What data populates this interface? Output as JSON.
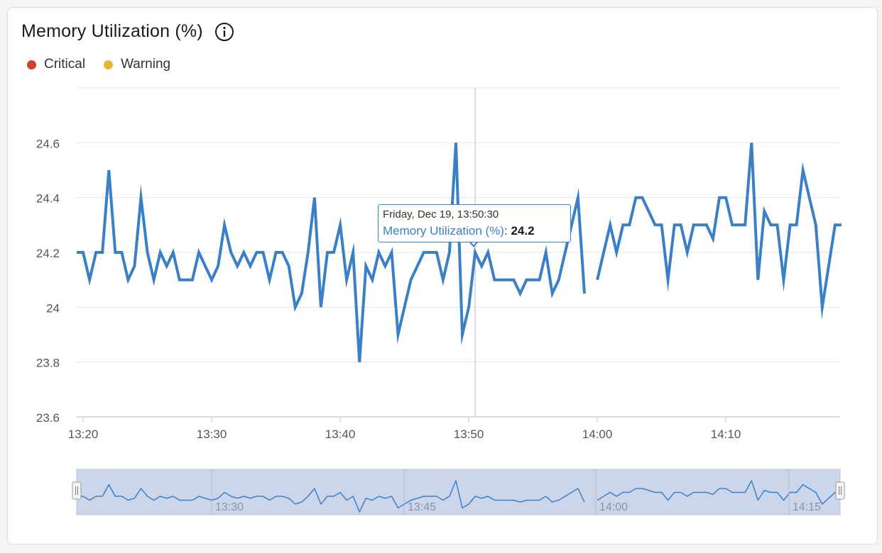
{
  "header": {
    "title": "Memory Utilization (%)",
    "info_icon": "info-circle-icon"
  },
  "legend": [
    {
      "label": "Critical",
      "color": "#d63b35"
    },
    {
      "label": "Warning",
      "color": "#e6b53a"
    }
  ],
  "tooltip": {
    "date": "Friday, Dec 19, 13:50:30",
    "series": "Memory Utilization (%)",
    "value": "24.2"
  },
  "colors": {
    "series": "#3a80c6",
    "navigator_fill": "#ccd6ea"
  },
  "chart_data": {
    "type": "line",
    "ylim": [
      23.6,
      24.8
    ],
    "y_ticks": [
      "23.6",
      "23.8",
      "24",
      "24.2",
      "24.4",
      "24.6"
    ],
    "x_ticks": [
      "13:20",
      "13:30",
      "13:40",
      "13:50",
      "14:00",
      "14:10"
    ],
    "grid": true,
    "series": [
      {
        "segments": [
          [
            [
              "13:19:30",
              24.2
            ],
            [
              "13:20:00",
              24.2
            ],
            [
              "13:20:30",
              24.1
            ],
            [
              "13:21:00",
              24.2
            ],
            [
              "13:21:30",
              24.2
            ],
            [
              "13:22:00",
              24.5
            ],
            [
              "13:22:30",
              24.2
            ],
            [
              "13:23:00",
              24.2
            ],
            [
              "13:23:30",
              24.1
            ],
            [
              "13:24:00",
              24.15
            ],
            [
              "13:24:30",
              24.4
            ],
            [
              "13:25:00",
              24.2
            ],
            [
              "13:25:30",
              24.1
            ],
            [
              "13:26:00",
              24.2
            ],
            [
              "13:26:30",
              24.15
            ],
            [
              "13:27:00",
              24.2
            ],
            [
              "13:27:30",
              24.1
            ],
            [
              "13:28:00",
              24.1
            ],
            [
              "13:28:30",
              24.1
            ],
            [
              "13:29:00",
              24.2
            ],
            [
              "13:29:30",
              24.15
            ],
            [
              "13:30:00",
              24.1
            ],
            [
              "13:30:30",
              24.15
            ],
            [
              "13:31:00",
              24.3
            ],
            [
              "13:31:30",
              24.2
            ],
            [
              "13:32:00",
              24.15
            ],
            [
              "13:32:30",
              24.2
            ],
            [
              "13:33:00",
              24.15
            ],
            [
              "13:33:30",
              24.2
            ],
            [
              "13:34:00",
              24.2
            ],
            [
              "13:34:30",
              24.1
            ],
            [
              "13:35:00",
              24.2
            ],
            [
              "13:35:30",
              24.2
            ],
            [
              "13:36:00",
              24.15
            ],
            [
              "13:36:30",
              24.0
            ],
            [
              "13:37:00",
              24.05
            ],
            [
              "13:37:30",
              24.2
            ],
            [
              "13:38:00",
              24.4
            ],
            [
              "13:38:30",
              24.0
            ],
            [
              "13:39:00",
              24.2
            ],
            [
              "13:39:30",
              24.2
            ],
            [
              "13:40:00",
              24.3
            ],
            [
              "13:40:30",
              24.1
            ],
            [
              "13:41:00",
              24.2
            ],
            [
              "13:41:30",
              23.8
            ],
            [
              "13:42:00",
              24.15
            ],
            [
              "13:42:30",
              24.1
            ],
            [
              "13:43:00",
              24.2
            ],
            [
              "13:43:30",
              24.15
            ],
            [
              "13:44:00",
              24.2
            ],
            [
              "13:44:30",
              23.9
            ],
            [
              "13:45:00",
              24.0
            ],
            [
              "13:45:30",
              24.1
            ],
            [
              "13:46:00",
              24.15
            ],
            [
              "13:46:30",
              24.2
            ],
            [
              "13:47:00",
              24.2
            ],
            [
              "13:47:30",
              24.2
            ],
            [
              "13:48:00",
              24.1
            ],
            [
              "13:48:30",
              24.2
            ],
            [
              "13:49:00",
              24.6
            ],
            [
              "13:49:30",
              23.9
            ],
            [
              "13:50:00",
              24.0
            ],
            [
              "13:50:30",
              24.2
            ],
            [
              "13:51:00",
              24.15
            ],
            [
              "13:51:30",
              24.2
            ],
            [
              "13:52:00",
              24.1
            ],
            [
              "13:52:30",
              24.1
            ],
            [
              "13:53:00",
              24.1
            ],
            [
              "13:53:30",
              24.1
            ],
            [
              "13:54:00",
              24.05
            ],
            [
              "13:54:30",
              24.1
            ],
            [
              "13:55:00",
              24.1
            ],
            [
              "13:55:30",
              24.1
            ],
            [
              "13:56:00",
              24.2
            ],
            [
              "13:56:30",
              24.05
            ],
            [
              "13:57:00",
              24.1
            ],
            [
              "13:57:30",
              24.2
            ],
            [
              "13:58:00",
              24.3
            ],
            [
              "13:58:30",
              24.4
            ],
            [
              "13:59:00",
              24.05
            ]
          ],
          [
            [
              "14:00:00",
              24.1
            ],
            [
              "14:00:30",
              24.2
            ],
            [
              "14:01:00",
              24.3
            ],
            [
              "14:01:30",
              24.2
            ],
            [
              "14:02:00",
              24.3
            ],
            [
              "14:02:30",
              24.3
            ],
            [
              "14:03:00",
              24.4
            ],
            [
              "14:03:30",
              24.4
            ],
            [
              "14:04:00",
              24.35
            ],
            [
              "14:04:30",
              24.3
            ],
            [
              "14:05:00",
              24.3
            ],
            [
              "14:05:30",
              24.1
            ],
            [
              "14:06:00",
              24.3
            ],
            [
              "14:06:30",
              24.3
            ],
            [
              "14:07:00",
              24.2
            ],
            [
              "14:07:30",
              24.3
            ],
            [
              "14:08:00",
              24.3
            ],
            [
              "14:08:30",
              24.3
            ],
            [
              "14:09:00",
              24.25
            ],
            [
              "14:09:30",
              24.4
            ],
            [
              "14:10:00",
              24.4
            ],
            [
              "14:10:30",
              24.3
            ],
            [
              "14:11:00",
              24.3
            ],
            [
              "14:11:30",
              24.3
            ],
            [
              "14:12:00",
              24.6
            ],
            [
              "14:12:30",
              24.1
            ],
            [
              "14:13:00",
              24.35
            ],
            [
              "14:13:30",
              24.3
            ],
            [
              "14:14:00",
              24.3
            ],
            [
              "14:14:30",
              24.1
            ],
            [
              "14:15:00",
              24.3
            ],
            [
              "14:15:30",
              24.3
            ],
            [
              "14:16:00",
              24.5
            ],
            [
              "14:16:30",
              24.4
            ],
            [
              "14:17:00",
              24.3
            ],
            [
              "14:17:30",
              24.0
            ],
            [
              "14:18:00",
              24.15
            ],
            [
              "14:18:30",
              24.3
            ],
            [
              "14:19:00",
              24.3
            ]
          ]
        ]
      }
    ],
    "crosshair_x": "13:50:30",
    "navigator": {
      "x_ticks": [
        "13:30",
        "13:45",
        "14:00",
        "14:15"
      ]
    }
  }
}
